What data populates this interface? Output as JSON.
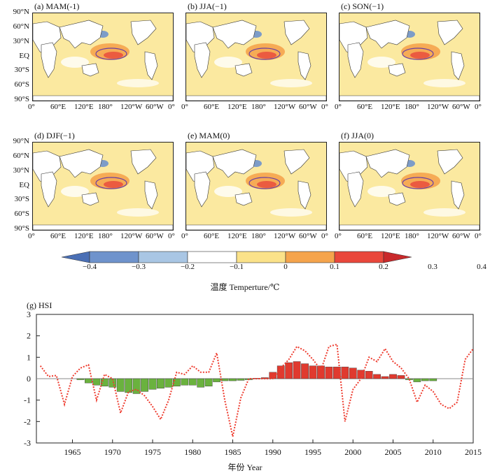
{
  "maps": {
    "panels": [
      {
        "label": "(a) MAM(-1)"
      },
      {
        "label": "(b) JJA(−1)"
      },
      {
        "label": "(c) SON(−1)"
      },
      {
        "label": "(d) DJF(−1)"
      },
      {
        "label": "(e) MAM(0)"
      },
      {
        "label": "(f) JJA(0)"
      }
    ],
    "lat_ticks": [
      "90°N",
      "60°N",
      "30°N",
      "EQ",
      "30°S",
      "60°S",
      "90°S"
    ],
    "lon_ticks": [
      "0°",
      "60°E",
      "120°E",
      "180°",
      "120°W",
      "60°W",
      "0°"
    ]
  },
  "colorbar": {
    "ticks": [
      "−0.4",
      "−0.3",
      "−0.2",
      "−0.1",
      "0",
      "0.1",
      "0.2",
      "0.3",
      "0.4"
    ],
    "colors": [
      "#4a6fb5",
      "#6f93cc",
      "#a9c6e4",
      "#ffffff",
      "#fbe289",
      "#f5a44c",
      "#e9473b",
      "#c9292b"
    ],
    "title": "温度 Temperture/℃"
  },
  "chart_data": {
    "type": "bar",
    "title": "(g) HSI",
    "xlabel": "年份 Year",
    "ylabel": "",
    "xlim": [
      1960.5,
      2015
    ],
    "ylim": [
      -3,
      3
    ],
    "x_ticks": [
      1965,
      1970,
      1975,
      1980,
      1985,
      1990,
      1995,
      2000,
      2005,
      2010,
      2015
    ],
    "y_ticks": [
      -3,
      -2,
      -1,
      0,
      1,
      2,
      3
    ],
    "bar_colors": {
      "positive": "#e03a2f",
      "negative": "#6ab23e"
    },
    "line_color": "#ee3b2e",
    "bars": {
      "years": [
        1966,
        1967,
        1968,
        1969,
        1970,
        1971,
        1972,
        1973,
        1974,
        1975,
        1976,
        1977,
        1978,
        1979,
        1980,
        1981,
        1982,
        1983,
        1984,
        1985,
        1986,
        1987,
        1988,
        1989,
        1990,
        1991,
        1992,
        1993,
        1994,
        1995,
        1996,
        1997,
        1998,
        1999,
        2000,
        2001,
        2002,
        2003,
        2004,
        2005,
        2006,
        2007,
        2008,
        2009,
        2010
      ],
      "values": [
        -0.05,
        -0.2,
        -0.3,
        -0.35,
        -0.4,
        -0.6,
        -0.65,
        -0.7,
        -0.6,
        -0.5,
        -0.45,
        -0.4,
        -0.35,
        -0.3,
        -0.3,
        -0.4,
        -0.35,
        -0.15,
        -0.1,
        -0.1,
        -0.08,
        -0.05,
        0.02,
        0.05,
        0.3,
        0.6,
        0.75,
        0.8,
        0.7,
        0.6,
        0.6,
        0.55,
        0.55,
        0.55,
        0.5,
        0.4,
        0.35,
        0.2,
        0.1,
        0.2,
        0.15,
        -0.05,
        -0.15,
        -0.1,
        -0.1
      ]
    },
    "line": {
      "years": [
        1961,
        1962,
        1963,
        1964,
        1965,
        1966,
        1967,
        1968,
        1969,
        1970,
        1971,
        1972,
        1973,
        1974,
        1975,
        1976,
        1977,
        1978,
        1979,
        1980,
        1981,
        1982,
        1983,
        1984,
        1985,
        1986,
        1987,
        1988,
        1989,
        1990,
        1991,
        1992,
        1993,
        1994,
        1995,
        1996,
        1997,
        1998,
        1999,
        2000,
        2001,
        2002,
        2003,
        2004,
        2005,
        2006,
        2007,
        2008,
        2009,
        2010,
        2011,
        2012,
        2013,
        2014,
        2015
      ],
      "values": [
        0.6,
        0.1,
        0.15,
        -1.2,
        0.1,
        0.5,
        0.65,
        -1.0,
        0.2,
        0.0,
        -1.6,
        -0.6,
        -0.5,
        -0.8,
        -1.3,
        -1.9,
        -1.0,
        0.3,
        0.2,
        0.6,
        0.3,
        0.3,
        1.2,
        -1.0,
        -2.7,
        -0.9,
        0.0,
        0.0,
        0.0,
        0.0,
        0.5,
        0.9,
        1.5,
        1.3,
        0.9,
        0.4,
        1.5,
        1.6,
        -2.0,
        -0.5,
        0.0,
        1.0,
        0.8,
        1.4,
        0.8,
        0.5,
        0.0,
        -1.1,
        -0.3,
        -0.6,
        -1.2,
        -1.4,
        -1.1,
        0.9,
        1.4
      ]
    }
  }
}
